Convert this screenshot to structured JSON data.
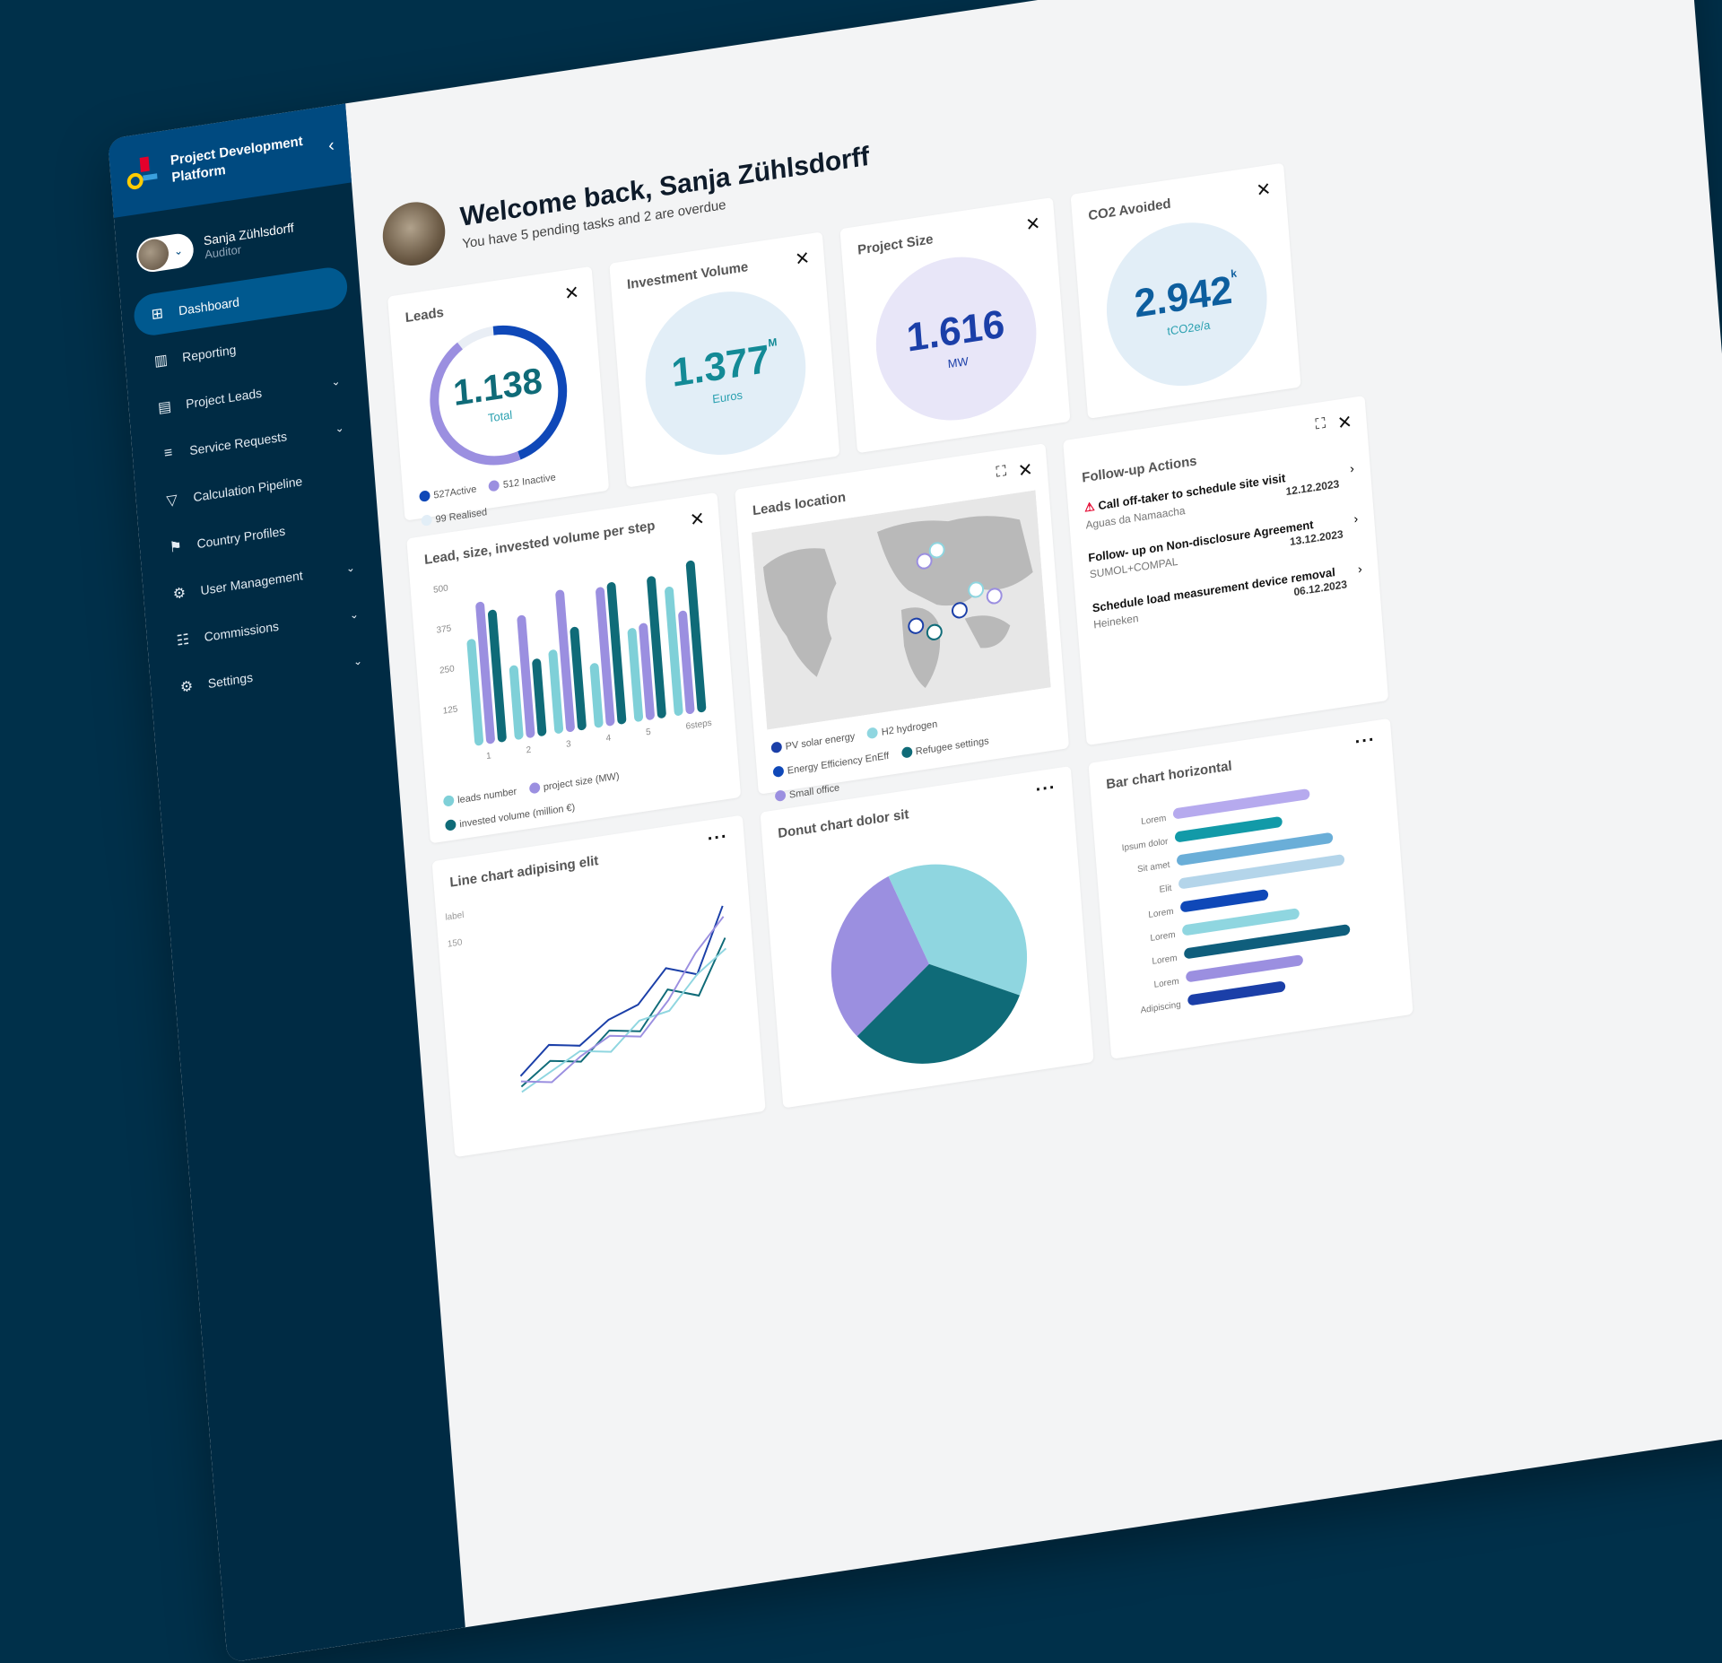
{
  "brand": {
    "line1": "Project Development",
    "line2": "Platform",
    "collapse": "‹"
  },
  "user": {
    "name": "Sanja Zühlsdorff",
    "role": "Auditor"
  },
  "nav": [
    {
      "label": "Dashboard",
      "icon": "⊞",
      "active": true,
      "chevron": ""
    },
    {
      "label": "Reporting",
      "icon": "▥",
      "active": false,
      "chevron": ""
    },
    {
      "label": "Project Leads",
      "icon": "▤",
      "active": false,
      "chevron": "⌄"
    },
    {
      "label": "Service Requests",
      "icon": "≡",
      "active": false,
      "chevron": "⌄"
    },
    {
      "label": "Calculation Pipeline",
      "icon": "▽",
      "active": false,
      "chevron": ""
    },
    {
      "label": "Country Profiles",
      "icon": "⚑",
      "active": false,
      "chevron": ""
    },
    {
      "label": "User Management",
      "icon": "⚙",
      "active": false,
      "chevron": "⌄"
    },
    {
      "label": "Commissions",
      "icon": "☷",
      "active": false,
      "chevron": "⌄"
    },
    {
      "label": "Settings",
      "icon": "⚙",
      "active": false,
      "chevron": "⌄"
    }
  ],
  "header": {
    "welcome": "Welcome back, Sanja Zühlsdorff",
    "sub": "You have 5 pending tasks and 2 are overdue"
  },
  "kpis": {
    "leads": {
      "title": "Leads",
      "value": "1.138",
      "unit": "Total",
      "active": "527Active",
      "inactive": "512 Inactive",
      "realised": "99 Realised",
      "active_fraction": 0.46,
      "inactive_fraction": 0.45
    },
    "investment": {
      "title": "Investment Volume",
      "value": "1.377",
      "suffix": "M",
      "unit": "Euros"
    },
    "project_size": {
      "title": "Project Size",
      "value": "1.616",
      "unit": "MW"
    },
    "co2": {
      "title": "CO2 Avoided",
      "value": "2.942",
      "suffix": "k",
      "unit": "tCO2e/a"
    }
  },
  "follow_up": {
    "title": "Follow-up Actions",
    "items": [
      {
        "title": "Call off-taker to schedule site visit",
        "date": "12.12.2023",
        "sub": "Aguas da Namaacha",
        "warning": true
      },
      {
        "title": "Follow- up on Non-disclosure Agreement",
        "date": "13.12.2023",
        "sub": "SUMOL+COMPAL",
        "warning": false
      },
      {
        "title": "Schedule load measurement device removal",
        "date": "06.12.2023",
        "sub": "Heineken",
        "warning": false
      }
    ]
  },
  "map": {
    "title": "Leads location",
    "legend": [
      "PV solar energy",
      "H2 hydrogen",
      "Energy Efficiency EnEff",
      "Refugee settings",
      "Small office"
    ]
  },
  "chart_data": [
    {
      "type": "bar",
      "title": "Lead, size, invested volume per step",
      "categories": [
        "1",
        "2",
        "3",
        "4",
        "5",
        "6"
      ],
      "xlabel": "steps",
      "ylim": [
        0,
        500
      ],
      "yticks": [
        125,
        250,
        375,
        500
      ],
      "series": [
        {
          "name": "leads number",
          "color": "#7fd0d8",
          "values": [
            330,
            230,
            260,
            200,
            290,
            400
          ]
        },
        {
          "name": "project size (MW)",
          "color": "#9b8fe0",
          "values": [
            440,
            380,
            440,
            430,
            300,
            320
          ]
        },
        {
          "name": "invested volume (million €)",
          "color": "#0f6b78",
          "values": [
            410,
            240,
            320,
            440,
            440,
            470
          ]
        }
      ]
    },
    {
      "type": "line",
      "title": "Line chart adipising elit",
      "ylabel": "label",
      "yticks": [
        150
      ],
      "series": [
        {
          "color": "#1b3fa8",
          "values": [
            20,
            45,
            40,
            60,
            70,
            100,
            90,
            150
          ]
        },
        {
          "color": "#0f6b78",
          "values": [
            10,
            30,
            25,
            50,
            45,
            80,
            70,
            120
          ]
        },
        {
          "color": "#8fd6e0",
          "values": [
            5,
            20,
            35,
            30,
            55,
            60,
            90,
            110
          ]
        },
        {
          "color": "#9b8fe0",
          "values": [
            15,
            10,
            30,
            45,
            40,
            70,
            110,
            140
          ]
        }
      ]
    },
    {
      "type": "pie",
      "title": "Donut chart dolor sit",
      "values": [
        38,
        32,
        30
      ],
      "colors": [
        "#8fd6e0",
        "#0f6b78",
        "#9b8fe0"
      ]
    },
    {
      "type": "bar",
      "orientation": "horizontal",
      "title": "Bar chart horizontal",
      "categories": [
        "Lorem",
        "Ipsum dolor",
        "Sit amet",
        "Elit",
        "Lorem",
        "Lorem",
        "Lorem",
        "Lorem",
        "Adipiscing"
      ],
      "values": [
        70,
        55,
        80,
        85,
        45,
        60,
        85,
        60,
        50
      ],
      "colors": [
        "#b6aaee",
        "#129aa8",
        "#6aaed8",
        "#b4d5ea",
        "#0f48b8",
        "#8fd6e0",
        "#0f5e7c",
        "#9b8fe0",
        "#1b3fa8"
      ]
    }
  ]
}
